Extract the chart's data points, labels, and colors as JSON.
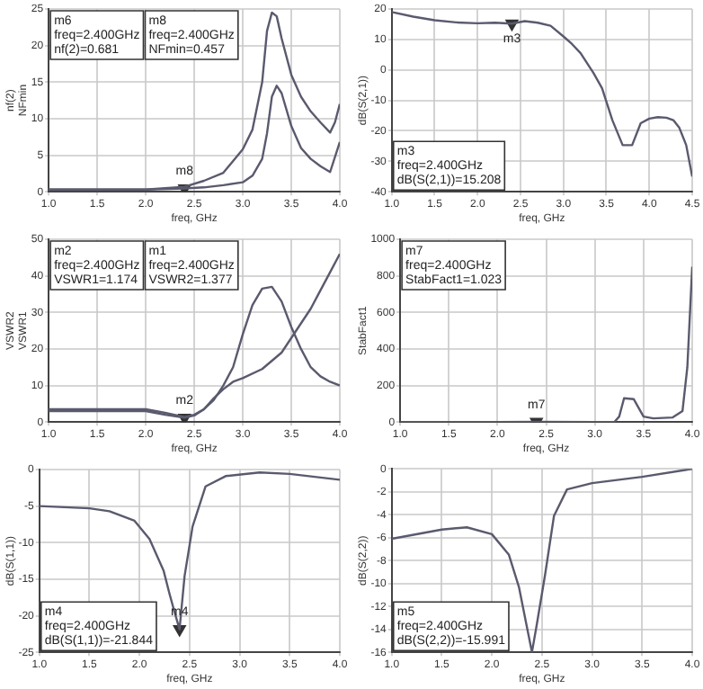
{
  "chart_data": [
    {
      "type": "line",
      "xlabel": "freq, GHz",
      "ylabel": "nf(2)\nNFmin",
      "xlim": [
        1,
        4
      ],
      "xticks": [
        {
          "value": 1,
          "label": "1.0"
        },
        {
          "value": 1.5,
          "label": "1.5"
        },
        {
          "value": 2,
          "label": "2.0"
        },
        {
          "value": 2.5,
          "label": "2.5"
        },
        {
          "value": 3,
          "label": "3.0"
        },
        {
          "value": 3.5,
          "label": "3.5"
        },
        {
          "value": 4,
          "label": "4.0"
        }
      ],
      "ylim": [
        0,
        25
      ],
      "yticks": [
        0,
        5,
        10,
        15,
        20,
        25
      ],
      "grid": true,
      "marker": "none",
      "line_style": "solid",
      "series": [
        {
          "color": "#5a5a6e",
          "x": [
            1.0,
            1.5,
            2.0,
            2.2,
            2.4,
            2.6,
            2.8,
            3.0,
            3.1,
            3.2,
            3.25,
            3.3,
            3.35,
            3.4,
            3.5,
            3.6,
            3.7,
            3.8,
            3.9,
            3.95,
            4.0
          ],
          "values": [
            0.3,
            0.3,
            0.3,
            0.5,
            0.681,
            1.5,
            2.6,
            5.8,
            8.5,
            15,
            22,
            24.5,
            24,
            21,
            16,
            13,
            11,
            9.5,
            8.1,
            9.5,
            12
          ]
        },
        {
          "color": "#5a5a6e",
          "x": [
            1.0,
            1.5,
            2.0,
            2.4,
            2.6,
            2.8,
            3.0,
            3.1,
            3.2,
            3.25,
            3.3,
            3.35,
            3.4,
            3.5,
            3.6,
            3.7,
            3.8,
            3.9,
            4.0
          ],
          "values": [
            0.3,
            0.3,
            0.3,
            0.457,
            0.6,
            0.9,
            1.3,
            2.2,
            4.5,
            8,
            13,
            14.5,
            13.5,
            9,
            6,
            4.5,
            3.5,
            2.7,
            6.8
          ]
        },
        {
          "type": "scatter",
          "name": "m8",
          "marker": "triangle",
          "color": "#333333",
          "x": [
            2.4
          ],
          "values": [
            0.457
          ]
        }
      ],
      "annotations": [
        "m6\nfreq=2.400GHz\nnf(2)=0.681",
        "m8\nfreq=2.400GHz\nNFmin=0.457"
      ]
    },
    {
      "type": "line",
      "xlabel": "freq, GHz",
      "ylabel": "dB(S(2,1))",
      "xlim": [
        1,
        4.5
      ],
      "xticks": [
        {
          "value": 1,
          "label": "1.0"
        },
        {
          "value": 1.5,
          "label": "1.5"
        },
        {
          "value": 2,
          "label": "2.0"
        },
        {
          "value": 2.5,
          "label": "2.5"
        },
        {
          "value": 3,
          "label": "3.0"
        },
        {
          "value": 3.5,
          "label": "3.5"
        },
        {
          "value": 4,
          "label": "4.0"
        },
        {
          "value": 4.5,
          "label": "4.5"
        }
      ],
      "ylim": [
        -40,
        20
      ],
      "yticks": [
        -40,
        -30,
        -20,
        -10,
        0,
        10,
        20
      ],
      "grid": true,
      "marker": "none",
      "line_style": "solid",
      "series": [
        {
          "color": "#5a5a6e",
          "x": [
            1.0,
            1.25,
            1.5,
            1.75,
            2.0,
            2.2,
            2.4,
            2.55,
            2.7,
            2.85,
            3.0,
            3.1,
            3.2,
            3.35,
            3.45,
            3.57,
            3.69,
            3.8,
            3.9,
            4.0,
            4.1,
            4.2,
            4.28,
            4.35,
            4.43,
            4.5
          ],
          "values": [
            19,
            17.5,
            16.3,
            15.6,
            15.3,
            15.5,
            15.208,
            16,
            15.5,
            14.5,
            11,
            8.5,
            5.5,
            -1,
            -6,
            -16.5,
            -24.7,
            -24.7,
            -17.5,
            -16,
            -15.5,
            -15.7,
            -16.5,
            -19,
            -24.7,
            -35
          ]
        },
        {
          "type": "scatter",
          "name": "m3",
          "marker": "triangle",
          "color": "#333333",
          "x": [
            2.4
          ],
          "values": [
            15.208
          ]
        }
      ],
      "annotations": [
        "m3\nfreq=2.400GHz\ndB(S(2,1))=15.208"
      ]
    },
    {
      "type": "line",
      "xlabel": "freq, GHz",
      "ylabel": "VSWR2\nVSWR1",
      "xlim": [
        1,
        4
      ],
      "xticks": [
        {
          "value": 1,
          "label": "1.0"
        },
        {
          "value": 1.5,
          "label": "1.5"
        },
        {
          "value": 2,
          "label": "2.0"
        },
        {
          "value": 2.5,
          "label": "2.5"
        },
        {
          "value": 3,
          "label": "3.0"
        },
        {
          "value": 3.5,
          "label": "3.5"
        },
        {
          "value": 4,
          "label": "4.0"
        }
      ],
      "ylim": [
        0,
        50
      ],
      "yticks": [
        0,
        10,
        20,
        30,
        40,
        50
      ],
      "grid": true,
      "marker": "none",
      "line_style": "solid",
      "series": [
        {
          "color": "#5a5a6e",
          "x": [
            1.0,
            1.5,
            2.0,
            2.2,
            2.4,
            2.5,
            2.6,
            2.7,
            2.8,
            2.9,
            3.0,
            3.1,
            3.2,
            3.3,
            3.4,
            3.5,
            3.6,
            3.7,
            3.8,
            3.9,
            4.0
          ],
          "values": [
            3.5,
            3.5,
            3.5,
            2.5,
            1.377,
            2,
            3.5,
            6,
            10,
            15,
            24,
            32,
            36.5,
            37,
            33,
            26,
            20,
            15,
            12.5,
            11,
            10
          ]
        },
        {
          "color": "#5a5a6e",
          "x": [
            1.0,
            1.5,
            2.0,
            2.2,
            2.4,
            2.5,
            2.6,
            2.7,
            2.8,
            2.9,
            3.0,
            3.2,
            3.4,
            3.5,
            3.6,
            3.7,
            3.8,
            3.9,
            4.0
          ],
          "values": [
            3,
            3,
            3,
            2,
            1.174,
            1.8,
            3.5,
            6.5,
            9,
            11,
            12,
            14.5,
            19,
            23,
            27,
            31,
            36,
            41,
            46
          ]
        },
        {
          "type": "scatter",
          "name": "m2",
          "marker": "triangle",
          "color": "#333333",
          "x": [
            2.4
          ],
          "values": [
            1.174
          ]
        }
      ],
      "annotations": [
        "m2\nfreq=2.400GHz\nVSWR1=1.174",
        "m1\nfreq=2.400GHz\nVSWR2=1.377"
      ]
    },
    {
      "type": "line",
      "xlabel": "freq, GHz",
      "ylabel": "StabFact1",
      "xlim": [
        1,
        4
      ],
      "xticks": [
        {
          "value": 1,
          "label": "1.0"
        },
        {
          "value": 1.5,
          "label": "1.5"
        },
        {
          "value": 2,
          "label": "2.0"
        },
        {
          "value": 2.5,
          "label": "2.5"
        },
        {
          "value": 3,
          "label": "3.0"
        },
        {
          "value": 3.5,
          "label": "3.5"
        },
        {
          "value": 4,
          "label": "4.0"
        }
      ],
      "ylim": [
        0,
        1000
      ],
      "yticks": [
        0,
        200,
        400,
        600,
        800,
        1000
      ],
      "grid": true,
      "marker": "none",
      "line_style": "solid",
      "series": [
        {
          "color": "#5a5a6e",
          "x": [
            1.0,
            2.0,
            2.4,
            3.0,
            3.2,
            3.25,
            3.3,
            3.4,
            3.5,
            3.6,
            3.8,
            3.9,
            3.95,
            4.0
          ],
          "values": [
            0,
            0,
            1.023,
            0,
            0,
            30,
            130,
            125,
            30,
            20,
            25,
            60,
            300,
            850
          ]
        },
        {
          "type": "scatter",
          "name": "m7",
          "marker": "triangle",
          "color": "#333333",
          "x": [
            2.4
          ],
          "values": [
            1.023
          ]
        }
      ],
      "annotations": [
        "m7\nfreq=2.400GHz\nStabFact1=1.023"
      ]
    },
    {
      "type": "line",
      "xlabel": "freq, GHz",
      "ylabel": "dB(S(1,1))",
      "xlim": [
        1,
        4
      ],
      "xticks": [
        {
          "value": 1,
          "label": "1.0"
        },
        {
          "value": 1.5,
          "label": "1.5"
        },
        {
          "value": 2,
          "label": "2.0"
        },
        {
          "value": 2.5,
          "label": "2.5"
        },
        {
          "value": 3,
          "label": "3.0"
        },
        {
          "value": 3.5,
          "label": "3.5"
        },
        {
          "value": 4,
          "label": "4.0"
        }
      ],
      "ylim": [
        -25,
        0
      ],
      "yticks": [
        -25,
        -20,
        -15,
        -10,
        -5,
        0
      ],
      "grid": true,
      "marker": "none",
      "line_style": "solid",
      "series": [
        {
          "color": "#5a5a6e",
          "x": [
            1.0,
            1.5,
            1.7,
            1.95,
            2.1,
            2.24,
            2.3,
            2.35,
            2.4,
            2.45,
            2.53,
            2.66,
            2.86,
            3.2,
            3.5,
            4.0
          ],
          "values": [
            -5,
            -5.3,
            -5.7,
            -7,
            -9.5,
            -13.8,
            -17,
            -19.5,
            -21.844,
            -14.6,
            -7.8,
            -2.3,
            -0.9,
            -0.4,
            -0.6,
            -1.4
          ]
        },
        {
          "type": "scatter",
          "name": "m4",
          "marker": "triangle",
          "color": "#333333",
          "x": [
            2.4
          ],
          "values": [
            -21.844
          ]
        }
      ],
      "annotations": [
        "m4\nfreq=2.400GHz\ndB(S(1,1))=-21.844"
      ]
    },
    {
      "type": "line",
      "xlabel": "freq, GHz",
      "ylabel": "dB(S(2,2))",
      "xlim": [
        1,
        4
      ],
      "xticks": [
        {
          "value": 1,
          "label": "1.0"
        },
        {
          "value": 1.5,
          "label": "1.5"
        },
        {
          "value": 2,
          "label": "2.0"
        },
        {
          "value": 2.5,
          "label": "2.5"
        },
        {
          "value": 3,
          "label": "3.0"
        },
        {
          "value": 3.5,
          "label": "3.5"
        },
        {
          "value": 4,
          "label": "4.0"
        }
      ],
      "ylim": [
        -16,
        0
      ],
      "yticks": [
        -16,
        -14,
        -12,
        -10,
        -8,
        -6,
        -4,
        -2,
        0
      ],
      "grid": true,
      "marker": "none",
      "line_style": "solid",
      "series": [
        {
          "color": "#5a5a6e",
          "x": [
            1.0,
            1.5,
            1.75,
            2.0,
            2.17,
            2.27,
            2.35,
            2.4,
            2.45,
            2.53,
            2.62,
            2.75,
            3.0,
            3.5,
            4.0
          ],
          "values": [
            -6.1,
            -5.3,
            -5.1,
            -5.7,
            -7.5,
            -10.3,
            -13.8,
            -15.991,
            -13.5,
            -9.3,
            -4.1,
            -1.8,
            -1.25,
            -0.7,
            0
          ]
        }
      ],
      "annotations": [
        "m5\nfreq=2.400GHz\ndB(S(2,2))=-15.991"
      ]
    }
  ]
}
